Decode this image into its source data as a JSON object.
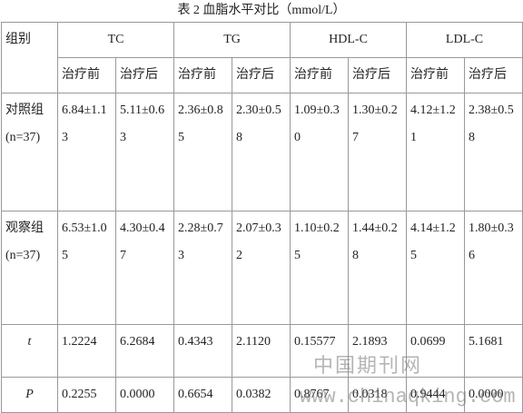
{
  "title": "表 2 血脂水平对比（mmol/L）",
  "table": {
    "header": [
      "组别",
      "TC",
      "TG",
      "HDL-C",
      "LDL-C"
    ],
    "subheader": [
      "治疗前",
      "治疗后",
      "治疗前",
      "治疗后",
      "治疗前",
      "治疗后",
      "治疗前",
      "治疗后"
    ],
    "rows": [
      {
        "label": "对照组(n=37)",
        "cells": [
          "6.84±1.13",
          "5.11±0.63",
          "2.36±0.85",
          "2.30±0.58",
          "1.09±0.30",
          "1.30±0.27",
          "4.12±1.21",
          "2.38±0.58"
        ]
      },
      {
        "label": "观察组(n=37)",
        "cells": [
          "6.53±1.05",
          "4.30±0.47",
          "2.28±0.73",
          "2.07±0.32",
          "1.10±0.25",
          "1.44±0.28",
          "4.14±1.25",
          "1.80±0.36"
        ]
      },
      {
        "label": "t",
        "cells": [
          "1.2224",
          "6.2684",
          "0.4343",
          "2.1120",
          "0.15577",
          "2.1893",
          "0.0699",
          "5.1681"
        ]
      },
      {
        "label": "P",
        "cells": [
          "0.2255",
          "0.0000",
          "0.6654",
          "0.0382",
          "0.8767",
          "0.0318",
          "0.9444",
          "0.0000"
        ]
      }
    ]
  },
  "watermark": [
    "中国期刊网",
    "www.chinaqking.com"
  ]
}
